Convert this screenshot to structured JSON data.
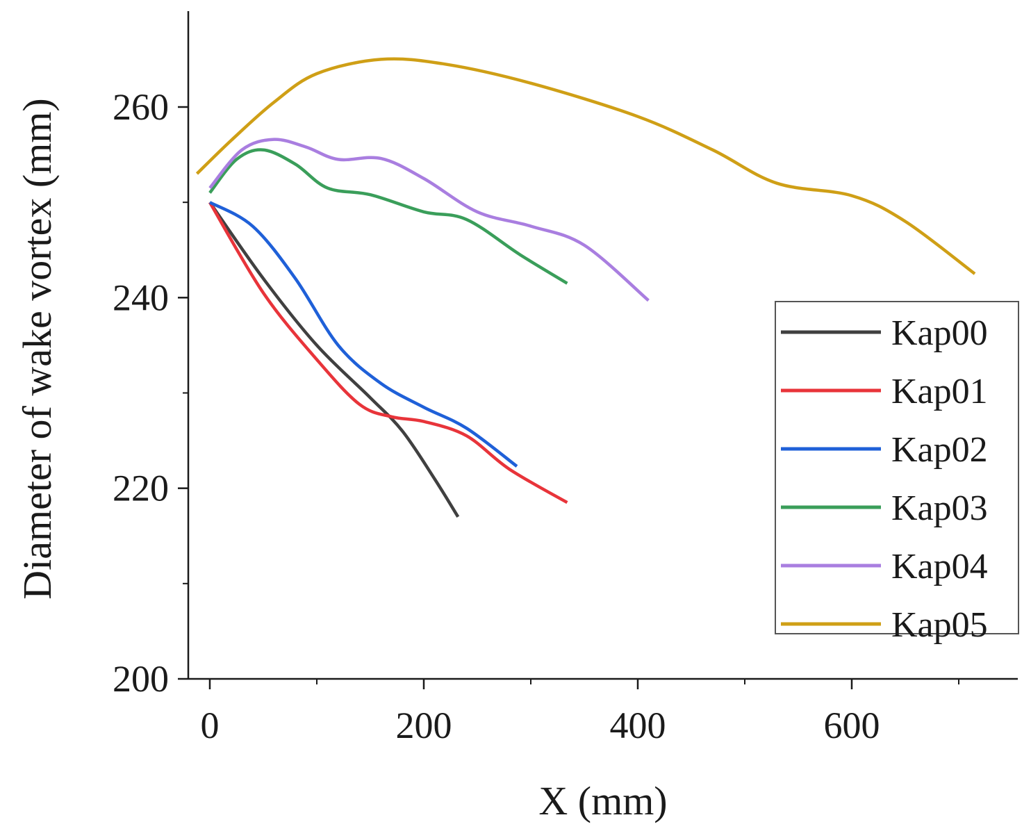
{
  "chart_data": {
    "type": "line",
    "title": "",
    "xlabel": "X (mm)",
    "ylabel": "Diameter of wake vortex (mm)",
    "xlim": [
      -20,
      750
    ],
    "ylim": [
      200,
      270
    ],
    "xticks": [
      0,
      200,
      400,
      600
    ],
    "xminor": [
      100,
      300,
      500,
      700
    ],
    "yticks": [
      200,
      220,
      240,
      260
    ],
    "yminor": [
      210,
      230,
      250
    ],
    "grid": false,
    "legend_position": "right",
    "series": [
      {
        "name": "Kap00",
        "color": "#404040",
        "x": [
          0,
          50,
          100,
          150,
          180,
          210,
          232
        ],
        "y": [
          250,
          242,
          235,
          229.5,
          226,
          221,
          217
        ]
      },
      {
        "name": "Kap01",
        "color": "#e8343a",
        "x": [
          0,
          50,
          100,
          140,
          170,
          200,
          240,
          280,
          334
        ],
        "y": [
          250,
          240.5,
          233.5,
          228.8,
          227.5,
          227,
          225.5,
          222,
          218.5
        ]
      },
      {
        "name": "Kap02",
        "color": "#1f60d8",
        "x": [
          0,
          40,
          80,
          120,
          160,
          200,
          240,
          287
        ],
        "y": [
          250,
          247.5,
          242,
          235,
          231,
          228.5,
          226.3,
          222.3
        ]
      },
      {
        "name": "Kap03",
        "color": "#3a9e5a",
        "x": [
          0,
          25,
          50,
          80,
          110,
          150,
          200,
          240,
          290,
          334
        ],
        "y": [
          251,
          254.5,
          255.5,
          254,
          251.5,
          250.8,
          249,
          248.2,
          244.5,
          241.5
        ]
      },
      {
        "name": "Kap04",
        "color": "#a97ee0",
        "x": [
          0,
          30,
          60,
          90,
          120,
          160,
          200,
          250,
          300,
          350,
          410
        ],
        "y": [
          251.5,
          255.5,
          256.6,
          255.8,
          254.5,
          254.6,
          252.5,
          249,
          247.5,
          245.5,
          239.7
        ]
      },
      {
        "name": "Kap05",
        "color": "#cf9f16",
        "x": [
          -12,
          20,
          60,
          100,
          160,
          220,
          300,
          400,
          470,
          530,
          600,
          650,
          715
        ],
        "y": [
          253,
          256.5,
          260.5,
          263.5,
          265,
          264.5,
          262.5,
          259,
          255.5,
          252,
          250.7,
          248,
          242.5
        ]
      }
    ]
  }
}
